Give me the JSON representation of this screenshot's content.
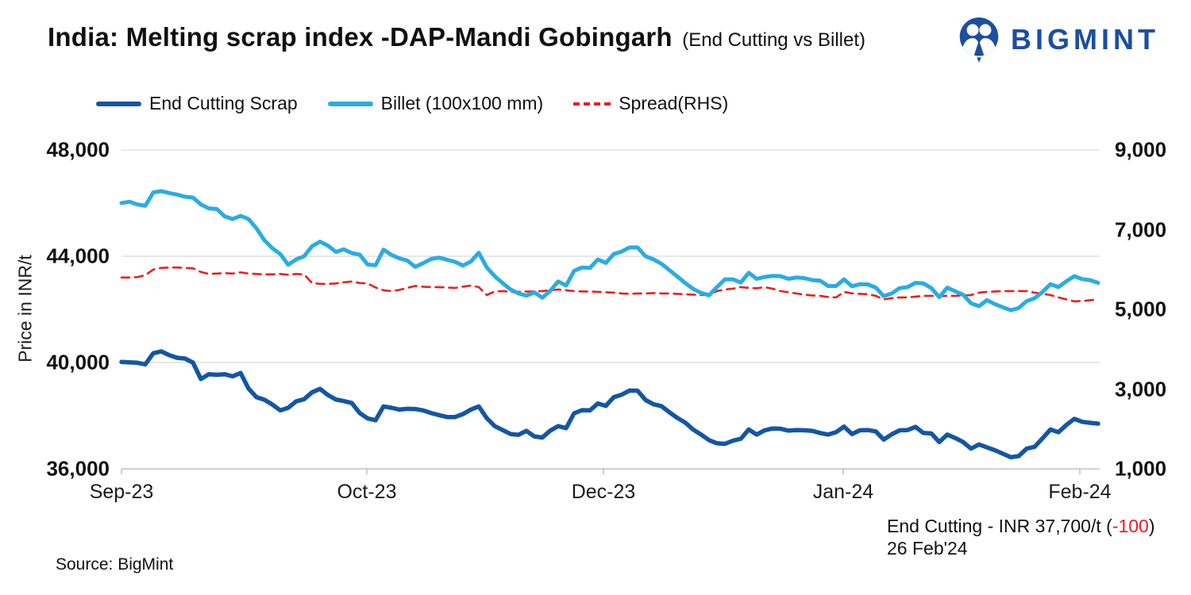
{
  "header": {
    "title": "India: Melting scrap index -DAP-Mandi Gobingarh",
    "subtitle": "(End Cutting vs Billet)",
    "brand": "BIGMINT"
  },
  "colors": {
    "brand": "#1C4EA1",
    "end_cutting": "#1356A4",
    "billet": "#2AACE3",
    "spread": "#E8201F",
    "negative": "#ED1C24",
    "grid": "#D9D9D9",
    "axis_line": "#BFBFBF"
  },
  "legend": [
    {
      "label": "End Cutting Scrap",
      "color": "#1356A4",
      "style": "solid"
    },
    {
      "label": "Billet (100x100 mm)",
      "color": "#2AACE3",
      "style": "solid"
    },
    {
      "label": "Spread(RHS)",
      "color": "#E8201F",
      "style": "dashed"
    }
  ],
  "annotation": {
    "line1_prefix": "End Cutting - INR 37,700/t (",
    "line1_change": "-100",
    "line1_suffix": ")",
    "line2": "26 Feb'24"
  },
  "source": "Source: BigMint",
  "chart_data": {
    "type": "line",
    "title": "India: Melting scrap index -DAP-Mandi Gobingarh (End Cutting vs Billet)",
    "grid": true,
    "legend_position": "top",
    "left_axis": {
      "label": "Price in INR/t",
      "min": 36000,
      "max": 48000,
      "ticks": [
        {
          "label": "48,000",
          "value": 48000
        },
        {
          "label": "44,000",
          "value": 44000
        },
        {
          "label": "40,000",
          "value": 40000
        },
        {
          "label": "36,000",
          "value": 36000
        }
      ]
    },
    "right_axis": {
      "min": 1000,
      "max": 9000,
      "ticks": [
        {
          "label": "9,000",
          "value": 9000
        },
        {
          "label": "7,000",
          "value": 7000
        },
        {
          "label": "5,000",
          "value": 5000
        },
        {
          "label": "3,000",
          "value": 3000
        },
        {
          "label": "1,000",
          "value": 1000
        }
      ]
    },
    "x_axis": {
      "labels": [
        {
          "text": "Sep-23",
          "pos": 0.0
        },
        {
          "text": "Oct-23",
          "pos": 0.2512
        },
        {
          "text": "Dec-23",
          "pos": 0.4935
        },
        {
          "text": "Jan-24",
          "pos": 0.739
        },
        {
          "text": "Feb-24",
          "pos": 0.9813
        }
      ]
    },
    "series": [
      {
        "name": "Spread(RHS)",
        "axis": "right",
        "color": "#E8201F",
        "dash": true,
        "width": 2.6,
        "values": [
          5800,
          5800,
          5810,
          5860,
          6000,
          6040,
          6050,
          6050,
          6040,
          6030,
          5940,
          5890,
          5900,
          5910,
          5900,
          5930,
          5900,
          5890,
          5880,
          5880,
          5890,
          5870,
          5890,
          5880,
          5660,
          5640,
          5640,
          5650,
          5680,
          5700,
          5660,
          5650,
          5550,
          5480,
          5460,
          5490,
          5540,
          5590,
          5570,
          5560,
          5560,
          5550,
          5540,
          5570,
          5600,
          5560,
          5360,
          5450,
          5460,
          5440,
          5440,
          5450,
          5450,
          5460,
          5480,
          5500,
          5480,
          5460,
          5450,
          5450,
          5440,
          5430,
          5420,
          5400,
          5390,
          5400,
          5400,
          5410,
          5400,
          5400,
          5390,
          5380,
          5370,
          5360,
          5370,
          5460,
          5500,
          5520,
          5560,
          5540,
          5530,
          5560,
          5520,
          5460,
          5430,
          5400,
          5370,
          5350,
          5340,
          5310,
          5300,
          5440,
          5400,
          5390,
          5380,
          5340,
          5250,
          5280,
          5300,
          5300,
          5320,
          5340,
          5340,
          5330,
          5340,
          5340,
          5350,
          5360,
          5420,
          5440,
          5450,
          5460,
          5460,
          5460,
          5460,
          5420,
          5390,
          5360,
          5300,
          5250,
          5200,
          5210,
          5230,
          5250
        ]
      },
      {
        "name": "Billet (100x100 mm)",
        "axis": "left",
        "color": "#2AACE3",
        "dash": false,
        "width": 5,
        "values": [
          46000,
          46050,
          45950,
          45900,
          46400,
          46450,
          46380,
          46320,
          46240,
          46210,
          45950,
          45800,
          45780,
          45500,
          45400,
          45520,
          45400,
          45050,
          44600,
          44300,
          44080,
          43680,
          43880,
          44000,
          44380,
          44550,
          44400,
          44160,
          44260,
          44120,
          44060,
          43690,
          43660,
          44250,
          44050,
          43920,
          43840,
          43600,
          43740,
          43900,
          43950,
          43870,
          43790,
          43650,
          43800,
          44130,
          43580,
          43250,
          42990,
          42750,
          42600,
          42520,
          42640,
          42440,
          42700,
          43050,
          42900,
          43450,
          43580,
          43560,
          43880,
          43750,
          44080,
          44180,
          44330,
          44330,
          44000,
          43880,
          43720,
          43480,
          43240,
          42990,
          42770,
          42620,
          42530,
          42840,
          43130,
          43130,
          43010,
          43380,
          43150,
          43220,
          43260,
          43250,
          43150,
          43200,
          43180,
          43100,
          43080,
          42880,
          42880,
          43130,
          42870,
          42950,
          42940,
          42820,
          42500,
          42600,
          42800,
          42840,
          43000,
          42980,
          42800,
          42460,
          42820,
          42680,
          42550,
          42230,
          42120,
          42350,
          42200,
          42080,
          41970,
          42050,
          42310,
          42420,
          42660,
          42950,
          42840,
          43060,
          43250,
          43140,
          43100,
          43000
        ]
      },
      {
        "name": "End Cutting Scrap",
        "axis": "left",
        "color": "#1356A4",
        "dash": false,
        "width": 5.5,
        "values": [
          40020,
          40010,
          39990,
          39930,
          40350,
          40420,
          40280,
          40180,
          40150,
          40000,
          39380,
          39560,
          39540,
          39560,
          39480,
          39610,
          39020,
          38700,
          38600,
          38420,
          38200,
          38300,
          38540,
          38620,
          38880,
          39010,
          38780,
          38610,
          38550,
          38480,
          38100,
          37900,
          37830,
          38350,
          38300,
          38230,
          38260,
          38250,
          38200,
          38100,
          38020,
          37950,
          37950,
          38060,
          38230,
          38350,
          37910,
          37610,
          37460,
          37310,
          37280,
          37430,
          37220,
          37180,
          37440,
          37610,
          37530,
          38090,
          38210,
          38200,
          38460,
          38370,
          38700,
          38790,
          38950,
          38940,
          38590,
          38430,
          38360,
          38130,
          37920,
          37740,
          37480,
          37290,
          37080,
          36960,
          36940,
          37060,
          37130,
          37480,
          37290,
          37450,
          37520,
          37510,
          37440,
          37460,
          37450,
          37430,
          37350,
          37290,
          37380,
          37590,
          37310,
          37450,
          37460,
          37410,
          37100,
          37300,
          37450,
          37460,
          37580,
          37350,
          37330,
          37010,
          37290,
          37160,
          37010,
          36760,
          36920,
          36810,
          36700,
          36570,
          36440,
          36480,
          36760,
          36830,
          37150,
          37480,
          37380,
          37650,
          37880,
          37770,
          37730,
          37700
        ]
      }
    ]
  }
}
